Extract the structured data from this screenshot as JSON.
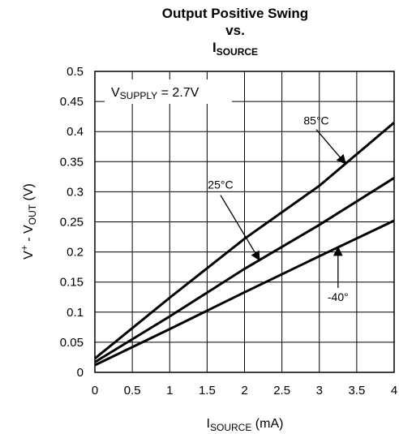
{
  "chart_data": {
    "type": "line",
    "title": {
      "line1": "Output Positive Swing",
      "line2": "vs.",
      "line3_main": "I",
      "line3_sub": "SOURCE"
    },
    "xlabel": {
      "main": "I",
      "sub": "SOURCE",
      "suffix": " (mA)"
    },
    "ylabel": {
      "main": "V",
      "sup": "+",
      "mid": " - V",
      "sub": "OUT",
      "suffix": " (V)"
    },
    "xlim": [
      0,
      4
    ],
    "ylim": [
      0,
      0.5
    ],
    "x_ticks": [
      0,
      0.5,
      1,
      1.5,
      2,
      2.5,
      3,
      3.5,
      4
    ],
    "x_tick_labels": [
      "0",
      "0.5",
      "1",
      "1.5",
      "2",
      "2.5",
      "3",
      "3.5",
      "4"
    ],
    "y_ticks": [
      0,
      0.05,
      0.1,
      0.15,
      0.2,
      0.25,
      0.3,
      0.35,
      0.4,
      0.45,
      0.5
    ],
    "y_tick_labels": [
      "0",
      "0.05",
      "0.1",
      "0.15",
      "0.2",
      "0.25",
      "0.3",
      "0.35",
      "0.4",
      "0.45",
      "0.5"
    ],
    "grid": true,
    "supply_annotation": {
      "main": "V",
      "sub": "SUPPLY",
      "suffix": " = 2.7V"
    },
    "series": [
      {
        "name": "85°C",
        "x": [
          0,
          1,
          2,
          3,
          4
        ],
        "values": [
          0.023,
          0.124,
          0.222,
          0.31,
          0.415
        ]
      },
      {
        "name": "25°C",
        "x": [
          0,
          1,
          2,
          3,
          4
        ],
        "values": [
          0.017,
          0.093,
          0.172,
          0.245,
          0.323
        ]
      },
      {
        "name": "-40°",
        "x": [
          0,
          1,
          2,
          3,
          4
        ],
        "values": [
          0.012,
          0.072,
          0.133,
          0.193,
          0.252
        ]
      }
    ],
    "annotations": [
      {
        "series": 0,
        "label": "85°C",
        "point_x": 3.35
      },
      {
        "series": 1,
        "label": "25°C",
        "point_x": 2.2
      },
      {
        "series": 2,
        "label": "-40°",
        "point_x": 3.25
      }
    ]
  }
}
